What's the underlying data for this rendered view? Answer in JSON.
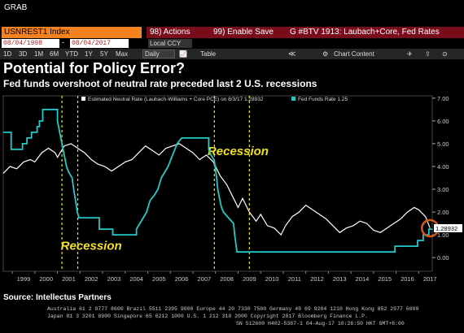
{
  "app_label": "GRAB",
  "ticker": "USNREST1 Index",
  "actions": {
    "actions_label": "98) Actions",
    "enable_save_label": "99) Enable Save",
    "chart_label": "G #BTV 1913: Laubach+Core, Fed Rates"
  },
  "dates": {
    "start": "08/04/1998",
    "end": "08/04/2017",
    "currency": "Local CCY"
  },
  "toolbar": {
    "ranges": [
      "1D",
      "3D",
      "1M",
      "6M",
      "YTD",
      "1Y",
      "5Y",
      "Max"
    ],
    "freq": "Daily",
    "table_label": "Table",
    "chart_content_label": "Chart Content"
  },
  "title": "Potential for Policy Error?",
  "subtitle": "Fed funds overshoot of neutral rate preceded last 2 U.S. recessions",
  "source": "Source: Intellectus Partners",
  "footer": {
    "line1": "Australia 61 2 9777 8600 Brazil 5511 2395 9000 Europe 44 20 7330 7500 Germany 49 69 9204 1210 Hong Kong 852 2977 6000",
    "line2": "Japan 81 3 3201 8900          Singapore 65 6212 1000          U.S. 1 212 318 2000          Copyright 2017 Bloomberg Finance L.P.",
    "line3": "SN 512600 H402-5387-1 04-Aug-17 10:26:50 HKT  GMT+8:00"
  },
  "colors": {
    "neutral": "#ffffff",
    "fedfunds": "#22c9c9",
    "recession": "#f0e020",
    "annotation": "#d05a20",
    "background": "#000000"
  },
  "chart_data": {
    "type": "line",
    "title": "Potential for Policy Error?",
    "subtitle": "Fed funds overshoot of neutral rate preceded last 2 U.S. recessions",
    "xlabel": "",
    "ylabel": "",
    "x_ticks": [
      "1999",
      "2000",
      "2001",
      "2002",
      "2003",
      "2004",
      "2005",
      "2006",
      "2007",
      "2008",
      "2009",
      "2010",
      "2011",
      "2012",
      "2013",
      "2014",
      "2015",
      "2016",
      "2017"
    ],
    "y_ticks": [
      "7.00",
      "6.00",
      "5.00",
      "4.00",
      "3.00",
      "2.00",
      "1.00",
      "0.00"
    ],
    "ylim": [
      -0.6,
      7.1
    ],
    "xlim": [
      1998.6,
      2017.6
    ],
    "grid": false,
    "legend_position": "top",
    "last_value_label": "1.28932",
    "series": [
      {
        "name": "Estimated Neutral Rate (Laubach-Williams + Core PCE) on 8/3/17 1.28932",
        "color": "#ffffff",
        "points": [
          [
            1998.6,
            3.7
          ],
          [
            1998.9,
            4.0
          ],
          [
            1999.2,
            3.9
          ],
          [
            1999.5,
            4.2
          ],
          [
            1999.8,
            4.3
          ],
          [
            2000.0,
            4.2
          ],
          [
            2000.3,
            4.6
          ],
          [
            2000.6,
            4.8
          ],
          [
            2000.9,
            4.6
          ],
          [
            2001.0,
            4.4
          ],
          [
            2001.3,
            4.9
          ],
          [
            2001.6,
            5.0
          ],
          [
            2001.9,
            4.8
          ],
          [
            2002.2,
            4.6
          ],
          [
            2002.5,
            4.3
          ],
          [
            2002.8,
            4.1
          ],
          [
            2003.1,
            4.0
          ],
          [
            2003.4,
            3.8
          ],
          [
            2003.7,
            4.0
          ],
          [
            2004.0,
            4.2
          ],
          [
            2004.3,
            4.3
          ],
          [
            2004.6,
            4.6
          ],
          [
            2004.9,
            4.9
          ],
          [
            2005.2,
            4.7
          ],
          [
            2005.5,
            4.5
          ],
          [
            2005.8,
            4.8
          ],
          [
            2006.1,
            4.9
          ],
          [
            2006.4,
            5.0
          ],
          [
            2006.7,
            4.8
          ],
          [
            2007.0,
            4.6
          ],
          [
            2007.3,
            4.3
          ],
          [
            2007.6,
            4.5
          ],
          [
            2007.9,
            4.2
          ],
          [
            2008.2,
            3.6
          ],
          [
            2008.5,
            3.2
          ],
          [
            2008.8,
            2.6
          ],
          [
            2009.0,
            2.2
          ],
          [
            2009.2,
            2.6
          ],
          [
            2009.5,
            2.0
          ],
          [
            2009.8,
            1.6
          ],
          [
            2010.0,
            1.9
          ],
          [
            2010.3,
            1.4
          ],
          [
            2010.6,
            1.3
          ],
          [
            2010.9,
            1.0
          ],
          [
            2011.1,
            1.4
          ],
          [
            2011.4,
            1.8
          ],
          [
            2011.7,
            2.0
          ],
          [
            2012.0,
            2.3
          ],
          [
            2012.3,
            2.1
          ],
          [
            2012.6,
            1.9
          ],
          [
            2012.9,
            1.7
          ],
          [
            2013.2,
            1.4
          ],
          [
            2013.5,
            1.1
          ],
          [
            2013.8,
            1.3
          ],
          [
            2014.1,
            1.4
          ],
          [
            2014.4,
            1.6
          ],
          [
            2014.7,
            1.5
          ],
          [
            2015.0,
            1.2
          ],
          [
            2015.3,
            1.1
          ],
          [
            2015.6,
            1.3
          ],
          [
            2015.9,
            1.5
          ],
          [
            2016.2,
            1.7
          ],
          [
            2016.5,
            2.0
          ],
          [
            2016.8,
            2.2
          ],
          [
            2017.0,
            2.1
          ],
          [
            2017.3,
            1.8
          ],
          [
            2017.5,
            1.3
          ]
        ]
      },
      {
        "name": "Fed Funds Rate 1.25",
        "color": "#22c9c9",
        "points": [
          [
            1998.6,
            5.5
          ],
          [
            1998.95,
            5.5
          ],
          [
            1998.95,
            4.75
          ],
          [
            1999.45,
            4.75
          ],
          [
            1999.45,
            5.0
          ],
          [
            1999.65,
            5.0
          ],
          [
            1999.65,
            5.25
          ],
          [
            1999.85,
            5.25
          ],
          [
            1999.85,
            5.5
          ],
          [
            2000.1,
            5.5
          ],
          [
            2000.1,
            5.75
          ],
          [
            2000.2,
            5.75
          ],
          [
            2000.2,
            6.0
          ],
          [
            2000.35,
            6.0
          ],
          [
            2000.35,
            6.5
          ],
          [
            2001.0,
            6.5
          ],
          [
            2001.0,
            6.0
          ],
          [
            2001.1,
            5.5
          ],
          [
            2001.2,
            5.0
          ],
          [
            2001.3,
            4.5
          ],
          [
            2001.4,
            4.0
          ],
          [
            2001.5,
            3.75
          ],
          [
            2001.65,
            3.5
          ],
          [
            2001.72,
            3.0
          ],
          [
            2001.8,
            2.5
          ],
          [
            2001.88,
            2.0
          ],
          [
            2001.95,
            1.75
          ],
          [
            2002.85,
            1.75
          ],
          [
            2002.85,
            1.25
          ],
          [
            2003.45,
            1.25
          ],
          [
            2003.45,
            1.0
          ],
          [
            2004.5,
            1.0
          ],
          [
            2004.5,
            1.25
          ],
          [
            2004.65,
            1.5
          ],
          [
            2004.8,
            1.75
          ],
          [
            2004.95,
            2.0
          ],
          [
            2005.1,
            2.5
          ],
          [
            2005.3,
            2.75
          ],
          [
            2005.45,
            3.0
          ],
          [
            2005.6,
            3.5
          ],
          [
            2005.75,
            3.75
          ],
          [
            2005.9,
            4.0
          ],
          [
            2006.1,
            4.5
          ],
          [
            2006.3,
            5.0
          ],
          [
            2006.5,
            5.25
          ],
          [
            2007.7,
            5.25
          ],
          [
            2007.7,
            4.75
          ],
          [
            2007.8,
            4.5
          ],
          [
            2007.95,
            4.25
          ],
          [
            2008.05,
            3.5
          ],
          [
            2008.1,
            3.0
          ],
          [
            2008.25,
            2.25
          ],
          [
            2008.35,
            2.0
          ],
          [
            2008.8,
            1.5
          ],
          [
            2008.85,
            1.0
          ],
          [
            2008.95,
            0.25
          ],
          [
            2015.95,
            0.25
          ],
          [
            2015.95,
            0.5
          ],
          [
            2016.95,
            0.5
          ],
          [
            2016.95,
            0.75
          ],
          [
            2017.2,
            0.75
          ],
          [
            2017.2,
            1.0
          ],
          [
            2017.45,
            1.0
          ],
          [
            2017.45,
            1.25
          ],
          [
            2017.6,
            1.25
          ]
        ]
      }
    ],
    "recessions": [
      [
        2001.2,
        2001.9
      ],
      [
        2007.95,
        2009.5
      ]
    ],
    "annotations": [
      "Recession",
      "Recession"
    ]
  }
}
